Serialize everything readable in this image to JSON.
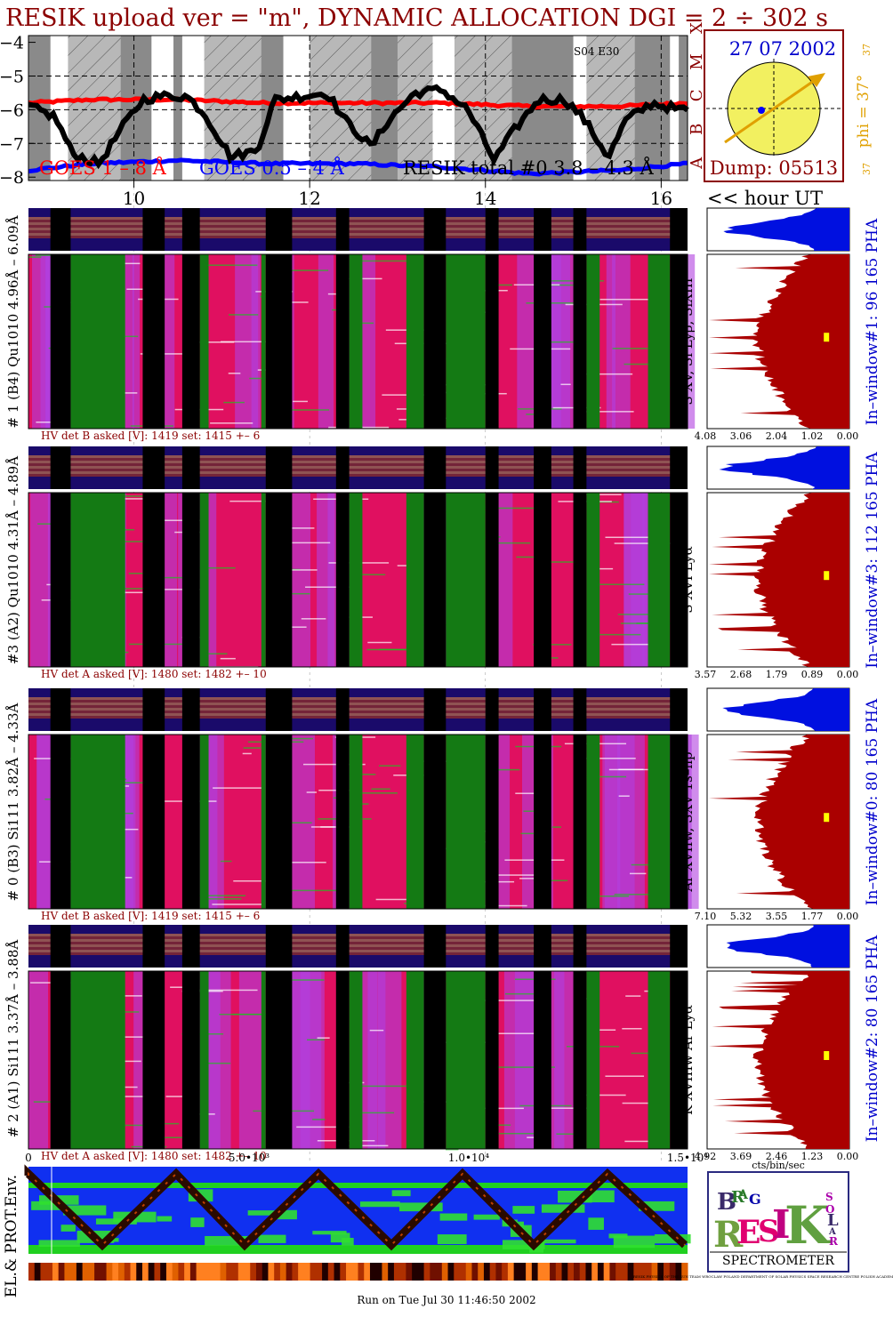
{
  "title": "RESIK upload ver = \"m\", DYNAMIC ALLOCATION  DGI =   2 ÷ 302 s",
  "goes_panel": {
    "y_ticks": [
      "−4",
      "−5",
      "−6",
      "−7",
      "−8"
    ],
    "class_letters": [
      "X",
      "M",
      "C",
      "B",
      "A"
    ],
    "legend_goes_long": "GOES 1 – 8 Å",
    "legend_goes_short": "GOES 0.5 – 4 Å",
    "legend_resik": "RESIK total #0  3.8 – 4.3 Å",
    "tag": "S04 E30",
    "hours": [
      "10",
      "12",
      "14",
      "16"
    ],
    "hour_caption": "<< hour UT"
  },
  "sun_box": {
    "date": "27 07 2002",
    "phi_label": "phi = 37°",
    "tick_top": "37",
    "tick_bottom": "37",
    "dump": "Dump: 05513",
    "colors": {
      "disk": "#f2f060",
      "arrow": "#e0a000",
      "point": "#0000ff",
      "frame": "#8b0000"
    }
  },
  "channels": [
    {
      "left_label": "# 1 (B4) Qu1010 4.96Å – 6.09Å",
      "line_label": "S XV, Si Lyβ, SiXIII",
      "window_label": "In–window#1:  96 165 PHA",
      "hv_text": "HV det B asked [V]:  1419 set:  1415  +–   6",
      "xaxis": [
        "4.08",
        "3.06",
        "2.04",
        "1.02",
        "0.00"
      ]
    },
    {
      "left_label": "#3 (A2) Qu1010  4.31Å – 4.89Å",
      "line_label": "S XVI Lyα",
      "window_label": "In–window#3:  112 165 PHA",
      "hv_text": "HV det A asked [V]:  1480 set:  1482  +–   10",
      "xaxis": [
        "3.57",
        "2.68",
        "1.79",
        "0.89",
        "0.00"
      ]
    },
    {
      "left_label": "# 0 (B3) Si111  3.82Å – 4.33Å",
      "line_label": "Ar XVIIw, SXV 1s–np",
      "window_label": "In–window#0:  80 165 PHA",
      "hv_text": "HV det B asked [V]:  1419 set:  1415  +–   6",
      "xaxis": [
        "7.10",
        "5.32",
        "3.55",
        "1.77",
        "0.00"
      ]
    },
    {
      "left_label": "# 2 (A1) Si111  3.37Å – 3.88Å",
      "line_label": "K XVIIIw  Ar Lyα",
      "window_label": "In–window#2:  80 165 PHA",
      "hv_text": "HV det A asked [V]:  1480 set:  1482  +–   10",
      "xaxis": [
        "4.92",
        "3.69",
        "2.46",
        "1.23",
        "0.00"
      ]
    }
  ],
  "bottom_panel": {
    "xaxis": [
      "0",
      "5.0•10³",
      "1.0•10⁴",
      "1.5•10⁴"
    ],
    "units": "cts/bin/sec",
    "side_label": "EL.& PROT.Env.",
    "run_text": "Run on Tue Jul 30 11:46:50 2002"
  },
  "logo": {
    "letters": [
      "B",
      "R",
      "A",
      "G",
      "R",
      "E",
      "S",
      "I",
      "K",
      "S",
      "O",
      "L",
      "A",
      "R"
    ],
    "caption": "SPECTROMETER",
    "fine_print": "RESIK PHYSICS OF THE SUN TEAM WROCLAW POLAND DEPARTMENT OF SOLAR PHYSICS SPACE RESEARCH CENTRE POLISH ACADEMY OF SCIENCES"
  },
  "chart_data": {
    "type": "line",
    "title": "RESIK upload ver = \"m\", DYNAMIC ALLOCATION  DGI =   2 ÷ 302 s",
    "xlabel": "<< hour UT",
    "ylabel": "",
    "x_ticks": [
      10,
      12,
      14,
      16
    ],
    "xlim": [
      8.8,
      16.3
    ],
    "ylim": [
      -8.1,
      -3.8
    ],
    "y_scale": "log flux (W m^-2)",
    "series": [
      {
        "name": "GOES 1 – 8 Å",
        "color": "#ff0000",
        "x": [
          8.8,
          9.5,
          10.5,
          11.5,
          12.5,
          13.5,
          14.5,
          15.5,
          16.3
        ],
        "values": [
          -5.8,
          -5.7,
          -5.7,
          -5.8,
          -5.8,
          -5.8,
          -5.9,
          -5.9,
          -5.8
        ]
      },
      {
        "name": "GOES 0.5 – 4 Å",
        "color": "#0000ff",
        "x": [
          8.8,
          9.5,
          10.5,
          11.5,
          12.5,
          13.5,
          14.5,
          15.5,
          16.3
        ],
        "values": [
          -7.8,
          -7.6,
          -7.5,
          -7.6,
          -7.6,
          -7.7,
          -7.9,
          -7.8,
          -7.6
        ]
      },
      {
        "name": "RESIK total #0  3.8 – 4.3 Å",
        "color": "#000000",
        "x": [
          8.8,
          9.1,
          9.3,
          9.6,
          9.9,
          10.1,
          10.3,
          10.6,
          10.8,
          11.1,
          11.4,
          11.6,
          11.9,
          12.2,
          12.4,
          12.7,
          12.9,
          13.2,
          13.5,
          13.8,
          14.1,
          14.3,
          14.6,
          14.9,
          15.1,
          15.4,
          15.6,
          15.9,
          16.2
        ],
        "values": [
          -5.9,
          -6.2,
          -7.3,
          -7.6,
          -6.4,
          -5.7,
          -5.6,
          -5.6,
          -6.1,
          -7.4,
          -7.2,
          -5.7,
          -5.6,
          -5.5,
          -6.3,
          -7.1,
          -6.3,
          -5.5,
          -5.4,
          -6.0,
          -7.5,
          -6.7,
          -5.7,
          -5.7,
          -6.2,
          -7.4,
          -6.3,
          -5.8,
          -6.0
        ]
      }
    ],
    "grid": true,
    "legend": "bottom"
  }
}
